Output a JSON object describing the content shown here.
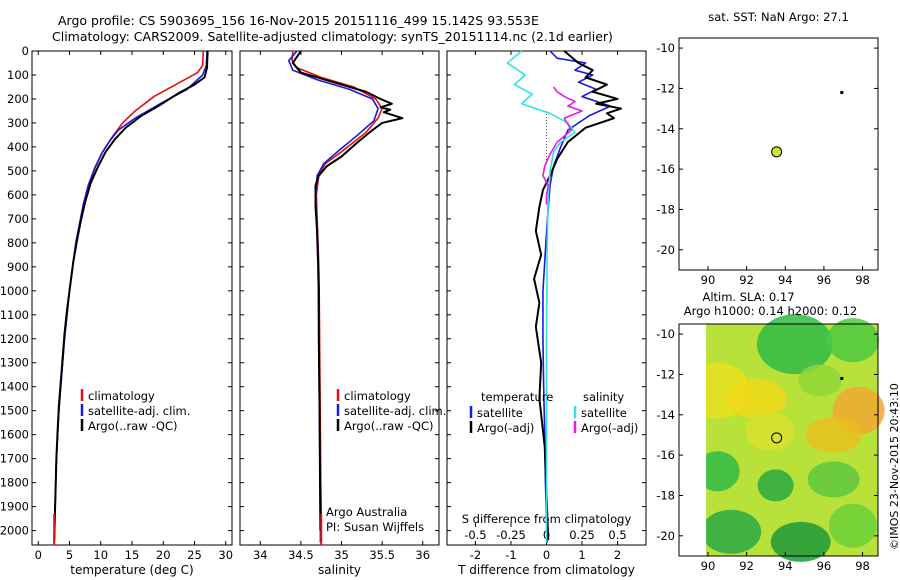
{
  "header": {
    "line1": "Argo profile: CS 5903695_156 16-Nov-2015 20151116_499 15.142S 93.553E",
    "line2": "Climatology: CARS2009. Satellite-adjusted climatology: synTS_20151114.nc (2.1d earlier)"
  },
  "colors": {
    "climatology": "#e01010",
    "satellite": "#1a1ad8",
    "argo": "#000000",
    "satellite_s": "#33e0e8",
    "argo_s": "#e81ae8",
    "marker_fill": "#c8e83a"
  },
  "chart_data": [
    {
      "type": "line",
      "id": "temperature-panel",
      "xlabel": "temperature (deg C)",
      "ylabel": "",
      "xlim": [
        -1,
        31
      ],
      "ylim": [
        2060,
        0
      ],
      "xticks": [
        0,
        5,
        10,
        15,
        20,
        25,
        30
      ],
      "yticks": [
        0,
        100,
        200,
        300,
        400,
        500,
        600,
        700,
        800,
        900,
        1000,
        1100,
        1200,
        1300,
        1400,
        1500,
        1600,
        1700,
        1800,
        1900,
        2000
      ],
      "legend": [
        "climatology",
        "satellite-adj. clim.",
        "Argo(..raw -QC)"
      ],
      "legend_position": "lower-center",
      "series": [
        {
          "name": "climatology",
          "color": "climatology",
          "x": [
            26.4,
            26.3,
            25.5,
            22.0,
            18.5,
            15.5,
            13.5,
            11.8,
            10.3,
            9.2,
            8.1,
            7.3,
            6.7,
            6.1,
            5.5,
            5.0,
            4.6,
            4.2,
            3.9,
            3.6,
            3.3,
            3.1,
            2.9,
            2.8,
            2.7,
            2.6,
            2.55
          ],
          "y": [
            0,
            60,
            90,
            140,
            190,
            250,
            300,
            360,
            420,
            480,
            560,
            640,
            720,
            800,
            900,
            1000,
            1100,
            1200,
            1300,
            1400,
            1500,
            1600,
            1700,
            1800,
            1900,
            2000,
            2050
          ]
        },
        {
          "name": "satellite-adj. clim.",
          "color": "satellite",
          "x": [
            27.0,
            26.9,
            26.3,
            23.8,
            19.5,
            15.5,
            12.8,
            11.3,
            10.1,
            9.0,
            8.0,
            7.2,
            6.6,
            6.0,
            5.5,
            5.0,
            4.6,
            4.2,
            3.9,
            3.6,
            3.3,
            3.1,
            2.9,
            2.8,
            2.7,
            2.6,
            2.55
          ],
          "y": [
            0,
            60,
            100,
            160,
            220,
            280,
            330,
            380,
            430,
            490,
            560,
            640,
            720,
            800,
            900,
            1000,
            1100,
            1200,
            1300,
            1400,
            1500,
            1600,
            1700,
            1800,
            1900,
            2000,
            2050
          ]
        },
        {
          "name": "Argo(..raw -QC)",
          "color": "argo",
          "x": [
            27.1,
            27.0,
            26.6,
            25.0,
            22.5,
            19.5,
            16.5,
            14.0,
            12.2,
            10.8,
            9.6,
            8.4,
            7.5,
            6.8,
            6.2,
            5.6,
            5.1,
            4.6,
            4.2,
            3.9,
            3.6,
            3.3,
            3.1,
            2.9,
            2.8,
            2.7,
            2.6,
            2.55
          ],
          "y": [
            0,
            70,
            110,
            140,
            175,
            225,
            270,
            320,
            370,
            420,
            480,
            550,
            630,
            710,
            790,
            880,
            980,
            1080,
            1180,
            1280,
            1380,
            1480,
            1580,
            1700,
            1800,
            1900,
            2000,
            2040
          ]
        }
      ]
    },
    {
      "type": "line",
      "id": "salinity-panel",
      "xlabel": "salinity",
      "ylabel": "",
      "xlim": [
        33.75,
        36.2
      ],
      "ylim": [
        2060,
        0
      ],
      "xticks": [
        34,
        34.5,
        35,
        35.5,
        36
      ],
      "legend": [
        "climatology",
        "satellite-adj. clim.",
        "Argo(..raw -QC)"
      ],
      "legend_position": "lower-center",
      "annotations": [
        "Argo Australia",
        "PI: Susan Wijffels"
      ],
      "series": [
        {
          "name": "climatology",
          "color": "climatology",
          "x": [
            34.4,
            34.39,
            34.45,
            34.75,
            35.15,
            35.42,
            35.5,
            35.45,
            35.3,
            35.0,
            34.8,
            34.72,
            34.69,
            34.7,
            34.71,
            34.72,
            34.725,
            34.73,
            34.735,
            34.74,
            34.745,
            34.75,
            34.75,
            34.75
          ],
          "y": [
            0,
            40,
            70,
            110,
            150,
            200,
            240,
            280,
            340,
            420,
            470,
            520,
            600,
            700,
            800,
            900,
            1000,
            1200,
            1400,
            1600,
            1800,
            1900,
            2000,
            2050
          ]
        },
        {
          "name": "satellite-adj. clim.",
          "color": "satellite",
          "x": [
            34.45,
            34.35,
            34.4,
            34.7,
            35.1,
            35.38,
            35.45,
            35.4,
            35.2,
            34.95,
            34.78,
            34.7,
            34.68,
            34.69,
            34.7,
            34.71,
            34.715,
            34.72,
            34.725,
            34.73,
            34.735,
            34.74,
            34.74
          ],
          "y": [
            0,
            40,
            80,
            120,
            160,
            200,
            240,
            290,
            350,
            420,
            470,
            520,
            600,
            700,
            800,
            900,
            1000,
            1200,
            1400,
            1600,
            1800,
            2000,
            2050
          ]
        },
        {
          "name": "Argo(..raw -QC)",
          "color": "argo",
          "x": [
            34.5,
            34.4,
            34.5,
            34.9,
            35.3,
            35.48,
            35.62,
            35.48,
            35.6,
            35.52,
            35.75,
            35.5,
            35.38,
            35.2,
            35.0,
            34.82,
            34.72,
            34.68,
            34.68,
            34.7,
            34.71,
            34.72,
            34.72,
            34.73,
            34.735,
            34.74
          ],
          "y": [
            0,
            50,
            90,
            130,
            170,
            200,
            220,
            235,
            245,
            255,
            280,
            300,
            330,
            380,
            440,
            480,
            520,
            560,
            650,
            750,
            850,
            1000,
            1200,
            1500,
            1800,
            2000
          ]
        }
      ]
    },
    {
      "type": "line",
      "id": "difference-panel",
      "xlabel": "T difference from climatology",
      "xlabel_top": "S difference from climatology",
      "xlim": [
        -2.8,
        2.8
      ],
      "ylim": [
        2060,
        0
      ],
      "xticks": [
        -2,
        -1,
        0,
        1,
        2
      ],
      "xticks_s": [
        -0.5,
        -0.25,
        0,
        0.25,
        0.5
      ],
      "xticks_s_labels": [
        "-0.5",
        "-0.25",
        "0",
        "0.25",
        "0.5"
      ],
      "legend_temperature_title": "temperature",
      "legend_salinity_title": "salinity",
      "legend": [
        "satellite",
        "Argo(-adj)",
        "satellite",
        "Argo(-adj)"
      ],
      "legend_position": "lower-center",
      "series": [
        {
          "name": "satellite",
          "group": "temperature",
          "color": "satellite",
          "x": [
            0.1,
            0.3,
            1.1,
            0.8,
            1.3,
            0.9,
            1.4,
            1.0,
            1.8,
            1.2,
            0.6,
            0.4,
            0.2,
            0.1,
            0.05,
            0.0,
            -0.05,
            -0.1,
            -0.1,
            -0.08,
            -0.05,
            -0.03,
            0.0,
            0.02
          ],
          "y": [
            0,
            30,
            50,
            80,
            100,
            130,
            160,
            190,
            230,
            270,
            330,
            400,
            480,
            560,
            650,
            760,
            880,
            1000,
            1200,
            1400,
            1600,
            1800,
            1950,
            2050
          ]
        },
        {
          "name": "Argo(-adj)",
          "group": "temperature",
          "color": "argo",
          "x": [
            0.5,
            0.9,
            1.3,
            1.1,
            1.7,
            1.3,
            2.0,
            1.4,
            2.1,
            1.7,
            1.9,
            1.1,
            0.6,
            0.3,
            0.1,
            -0.1,
            -0.2,
            -0.3,
            -0.15,
            -0.35,
            -0.2,
            -0.3,
            -0.15,
            -0.2,
            -0.05,
            0.0,
            0.05
          ],
          "y": [
            0,
            50,
            80,
            110,
            140,
            170,
            200,
            220,
            240,
            260,
            280,
            320,
            380,
            450,
            520,
            580,
            650,
            750,
            850,
            950,
            1050,
            1150,
            1300,
            1450,
            1650,
            1850,
            2040
          ]
        },
        {
          "name": "satellite",
          "group": "salinity",
          "color": "satellite_s",
          "x": [
            -0.7,
            -1.1,
            -0.6,
            -0.9,
            -0.4,
            -0.7,
            0.1,
            0.6,
            0.8,
            0.4,
            0.2,
            0.1,
            0.05,
            0.02,
            0.0,
            0.0
          ],
          "y": [
            0,
            50,
            100,
            140,
            180,
            220,
            260,
            300,
            340,
            380,
            420,
            500,
            600,
            800,
            1200,
            2050
          ]
        },
        {
          "name": "Argo(-adj)",
          "group": "salinity",
          "color": "argo_s",
          "x": [
            0.2,
            0.3,
            0.5,
            0.8,
            0.6,
            1.0,
            0.5,
            0.7,
            0.3,
            0.1,
            -0.05,
            -0.1,
            0.05,
            0.0,
            0.0
          ],
          "y": [
            150,
            170,
            190,
            210,
            230,
            250,
            280,
            330,
            380,
            430,
            480,
            520,
            560,
            600,
            640
          ]
        }
      ]
    },
    {
      "type": "scatter",
      "id": "sst-map",
      "title": "sat. SST: NaN Argo: 27.1",
      "xlim": [
        88.5,
        98.8
      ],
      "ylim": [
        -21,
        -9.5
      ],
      "xticks": [
        90,
        92,
        94,
        96,
        98
      ],
      "yticks": [
        -10,
        -12,
        -14,
        -16,
        -18,
        -20
      ],
      "points": [
        {
          "label": "argo-position",
          "x": 93.553,
          "y": -15.142
        },
        {
          "label": "previous-position",
          "x": 96.9,
          "y": -12.2
        }
      ]
    },
    {
      "type": "heatmap",
      "id": "sla-map",
      "title_line1": "Altim. SLA: 0.17",
      "title_line2": "Argo h1000: 0.14 h2000: 0.12",
      "xlim": [
        88.5,
        98.8
      ],
      "ylim": [
        -21,
        -9.5
      ],
      "xticks": [
        90,
        92,
        94,
        96,
        98
      ],
      "yticks": [
        -10,
        -12,
        -14,
        -16,
        -18,
        -20
      ],
      "points": [
        {
          "label": "argo-position",
          "x": 93.553,
          "y": -15.142
        },
        {
          "label": "previous-position",
          "x": 96.9,
          "y": -12.2
        }
      ]
    }
  ],
  "footer": {
    "credit": "©IMOS 23-Nov-2015 20:43:10"
  }
}
